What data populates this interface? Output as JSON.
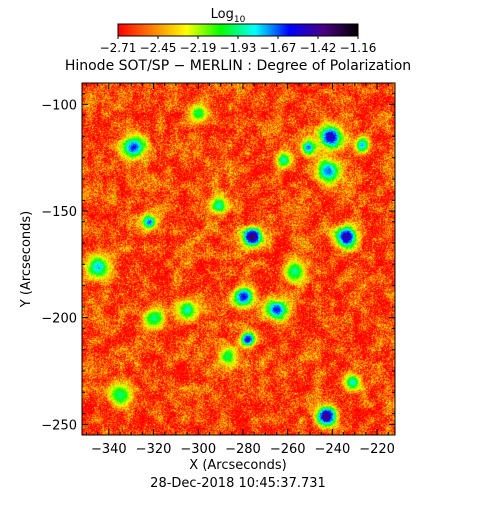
{
  "chart_data": {
    "type": "heatmap",
    "title": "Hinode SOT/SP − MERLIN : Degree of Polarization",
    "xlabel": "X (Arcseconds)",
    "ylabel": "Y (Arcseconds)",
    "timestamp": "28-Dec-2018 10:45:37.731",
    "xlim": [
      -352,
      -212
    ],
    "ylim": [
      -255,
      -90
    ],
    "xticks": [
      -340,
      -320,
      -300,
      -280,
      -260,
      -240,
      -220
    ],
    "yticks": [
      -100,
      -150,
      -200,
      -250
    ],
    "xtick_labels": [
      "−340",
      "−320",
      "−300",
      "−280",
      "−260",
      "−240",
      "−220"
    ],
    "ytick_labels": [
      "−100",
      "−150",
      "−200",
      "−250"
    ],
    "colorbar": {
      "label": "Log",
      "label_subscript": "10",
      "range": [
        -2.71,
        -1.16
      ],
      "tick_labels": [
        "−2.71",
        "−2.45",
        "−2.19",
        "−1.93",
        "−1.67",
        "−1.42",
        "−1.16"
      ],
      "colormap": [
        "#ff0000",
        "#ff7f00",
        "#ffff00",
        "#00ff00",
        "#00ffff",
        "#0000ff",
        "#4b0082",
        "#000000"
      ]
    },
    "background_level": -2.6,
    "features": [
      {
        "x": -276,
        "y": -162,
        "value": -1.2
      },
      {
        "x": -234,
        "y": -162,
        "value": -1.3
      },
      {
        "x": -241,
        "y": -115,
        "value": -1.35
      },
      {
        "x": -243,
        "y": -246,
        "value": -1.25
      },
      {
        "x": -278,
        "y": -210,
        "value": -1.4
      },
      {
        "x": -280,
        "y": -190,
        "value": -1.5
      },
      {
        "x": -265,
        "y": -196,
        "value": -1.5
      },
      {
        "x": -251,
        "y": -120,
        "value": -1.6
      },
      {
        "x": -329,
        "y": -120,
        "value": -1.55
      },
      {
        "x": -322,
        "y": -155,
        "value": -1.6
      },
      {
        "x": -345,
        "y": -176,
        "value": -1.7
      },
      {
        "x": -242,
        "y": -131,
        "value": -1.6
      },
      {
        "x": -227,
        "y": -119,
        "value": -1.7
      },
      {
        "x": -231,
        "y": -230,
        "value": -1.75
      },
      {
        "x": -305,
        "y": -196,
        "value": -1.8
      },
      {
        "x": -291,
        "y": -147,
        "value": -1.8
      },
      {
        "x": -262,
        "y": -126,
        "value": -1.8
      },
      {
        "x": -320,
        "y": -200,
        "value": -1.85
      },
      {
        "x": -287,
        "y": -218,
        "value": -1.9
      },
      {
        "x": -257,
        "y": -178,
        "value": -1.85
      },
      {
        "x": -335,
        "y": -236,
        "value": -1.9
      },
      {
        "x": -300,
        "y": -104,
        "value": -1.9
      }
    ]
  }
}
